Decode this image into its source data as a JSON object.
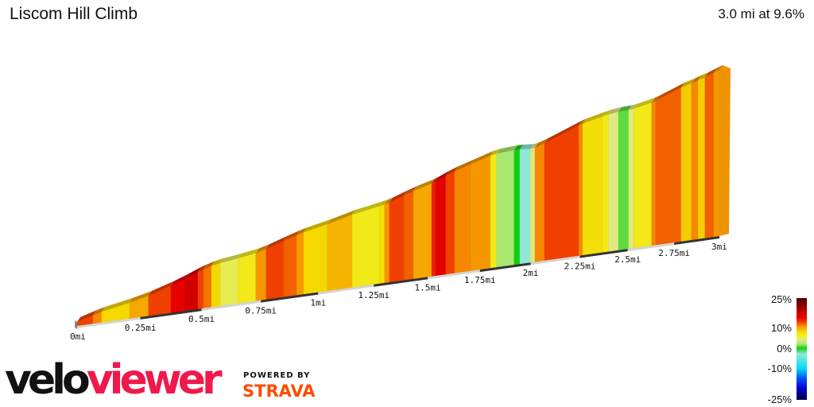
{
  "header": {
    "title": "Liscom Hill Climb",
    "summary": "3.0 mi at 9.6%"
  },
  "branding": {
    "velo": "velo",
    "viewer": "viewer",
    "powered_by": "POWERED BY",
    "strava": "STRAVA"
  },
  "chart_data": {
    "type": "area",
    "title": "Liscom Hill Climb",
    "subtitle": "3.0 mi at 9.6%",
    "xlabel": "",
    "ylabel": "",
    "xlim": [
      0,
      3
    ],
    "x_unit": "mi",
    "grid": false,
    "legend_placement": "bottom-right",
    "x_ticks": [
      {
        "value": 0,
        "label": "0mi"
      },
      {
        "value": 0.25,
        "label": "0.25mi"
      },
      {
        "value": 0.5,
        "label": "0.5mi"
      },
      {
        "value": 0.75,
        "label": "0.75mi"
      },
      {
        "value": 1,
        "label": "1mi"
      },
      {
        "value": 1.25,
        "label": "1.25mi"
      },
      {
        "value": 1.5,
        "label": "1.5mi"
      },
      {
        "value": 1.75,
        "label": "1.75mi"
      },
      {
        "value": 2,
        "label": "2mi"
      },
      {
        "value": 2.25,
        "label": "2.25mi"
      },
      {
        "value": 2.5,
        "label": "2.5mi"
      },
      {
        "value": 2.75,
        "label": "2.75mi"
      },
      {
        "value": 3,
        "label": "3mi"
      }
    ],
    "segments": [
      {
        "end": 0.062,
        "grade": 13
      },
      {
        "end": 0.096,
        "grade": 11
      },
      {
        "end": 0.207,
        "grade": 8
      },
      {
        "end": 0.283,
        "grade": 10
      },
      {
        "end": 0.374,
        "grade": 13
      },
      {
        "end": 0.432,
        "grade": 15
      },
      {
        "end": 0.485,
        "grade": 17
      },
      {
        "end": 0.508,
        "grade": 13
      },
      {
        "end": 0.541,
        "grade": 11.5
      },
      {
        "end": 0.578,
        "grade": 8
      },
      {
        "end": 0.655,
        "grade": 5
      },
      {
        "end": 0.729,
        "grade": 6.5
      },
      {
        "end": 0.773,
        "grade": 10.5
      },
      {
        "end": 0.849,
        "grade": 13
      },
      {
        "end": 0.905,
        "grade": 12
      },
      {
        "end": 0.936,
        "grade": 10.5
      },
      {
        "end": 1.041,
        "grade": 8
      },
      {
        "end": 1.152,
        "grade": 9.5
      },
      {
        "end": 1.275,
        "grade": 6.5
      },
      {
        "end": 1.3,
        "grade": 7.5
      },
      {
        "end": 1.322,
        "grade": 10.5
      },
      {
        "end": 1.389,
        "grade": 13
      },
      {
        "end": 1.433,
        "grade": 12
      },
      {
        "end": 1.519,
        "grade": 10
      },
      {
        "end": 1.538,
        "grade": 14
      },
      {
        "end": 1.586,
        "grade": 15.5
      },
      {
        "end": 1.628,
        "grade": 13
      },
      {
        "end": 1.705,
        "grade": 11
      },
      {
        "end": 1.801,
        "grade": 10.5
      },
      {
        "end": 1.832,
        "grade": 6.5
      },
      {
        "end": 1.918,
        "grade": 2
      },
      {
        "end": 1.946,
        "grade": 0
      },
      {
        "end": 1.998,
        "grade": -3
      },
      {
        "end": 2.022,
        "grade": 4
      },
      {
        "end": 2.07,
        "grade": 11
      },
      {
        "end": 2.244,
        "grade": 13
      },
      {
        "end": 2.264,
        "grade": 11
      },
      {
        "end": 2.367,
        "grade": 7.5
      },
      {
        "end": 2.4,
        "grade": 6.5
      },
      {
        "end": 2.451,
        "grade": 4
      },
      {
        "end": 2.505,
        "grade": 1
      },
      {
        "end": 2.531,
        "grade": 4
      },
      {
        "end": 2.628,
        "grade": 6.5
      },
      {
        "end": 2.65,
        "grade": 11
      },
      {
        "end": 2.788,
        "grade": 12
      },
      {
        "end": 2.845,
        "grade": 8.5
      },
      {
        "end": 2.881,
        "grade": 11
      },
      {
        "end": 2.92,
        "grade": 8.5
      },
      {
        "end": 2.969,
        "grade": 12
      },
      {
        "end": 3.0,
        "grade": 10.5
      }
    ],
    "color_legend": {
      "labels": [
        {
          "value": 25,
          "label": "25%"
        },
        {
          "value": 10,
          "label": "10%"
        },
        {
          "value": 0,
          "label": "0%"
        },
        {
          "value": -10,
          "label": "-10%"
        },
        {
          "value": -25,
          "label": "-25%"
        }
      ],
      "stops": [
        [
          -25,
          "#000050"
        ],
        [
          -20,
          "#0000c8"
        ],
        [
          -15,
          "#0050ff"
        ],
        [
          -10,
          "#00e0f0"
        ],
        [
          -3,
          "#90e8d8"
        ],
        [
          0,
          "#10d010"
        ],
        [
          2,
          "#a8e870"
        ],
        [
          4,
          "#e0e880"
        ],
        [
          6,
          "#f0f020"
        ],
        [
          8,
          "#f5d800"
        ],
        [
          10,
          "#f5a800"
        ],
        [
          11,
          "#f58800"
        ],
        [
          12,
          "#f26000"
        ],
        [
          13,
          "#f04000"
        ],
        [
          15,
          "#e80000"
        ],
        [
          18,
          "#c80000"
        ],
        [
          25,
          "#500000"
        ]
      ]
    }
  }
}
